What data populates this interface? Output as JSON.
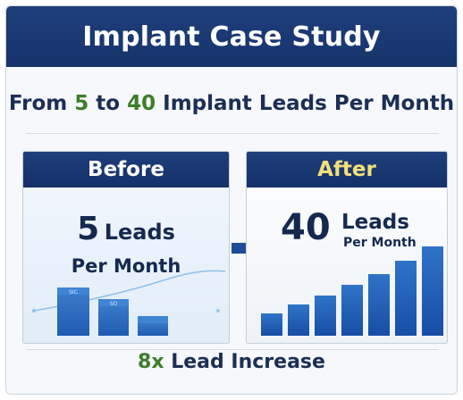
{
  "header": {
    "title": "Implant Case Study"
  },
  "subtitle": {
    "prefix": "From",
    "from_value": "5",
    "middle": "to",
    "to_value": "40",
    "suffix": "Implant Leads Per Month"
  },
  "before": {
    "label": "Before",
    "value": "5",
    "unit": "Leads",
    "period": "Per Month",
    "bar_tags": [
      "SIC",
      "SO"
    ],
    "bar_levels": [
      0.45,
      0.34,
      0.18
    ]
  },
  "after": {
    "label": "After",
    "value": "40",
    "unit": "Leads",
    "period": "Per Month",
    "bar_levels": [
      0.2,
      0.28,
      0.36,
      0.46,
      0.56,
      0.68,
      0.81
    ]
  },
  "footer": {
    "multiplier": "8x",
    "text": "Lead Increase"
  },
  "colors": {
    "header_bg": "#1a3873",
    "accent_green": "#3c7d2b",
    "after_label": "#f4e07a",
    "bar_blue": "#2a69be",
    "text_navy": "#13294f"
  },
  "icons": {
    "arrow": "arrow-right-icon"
  }
}
